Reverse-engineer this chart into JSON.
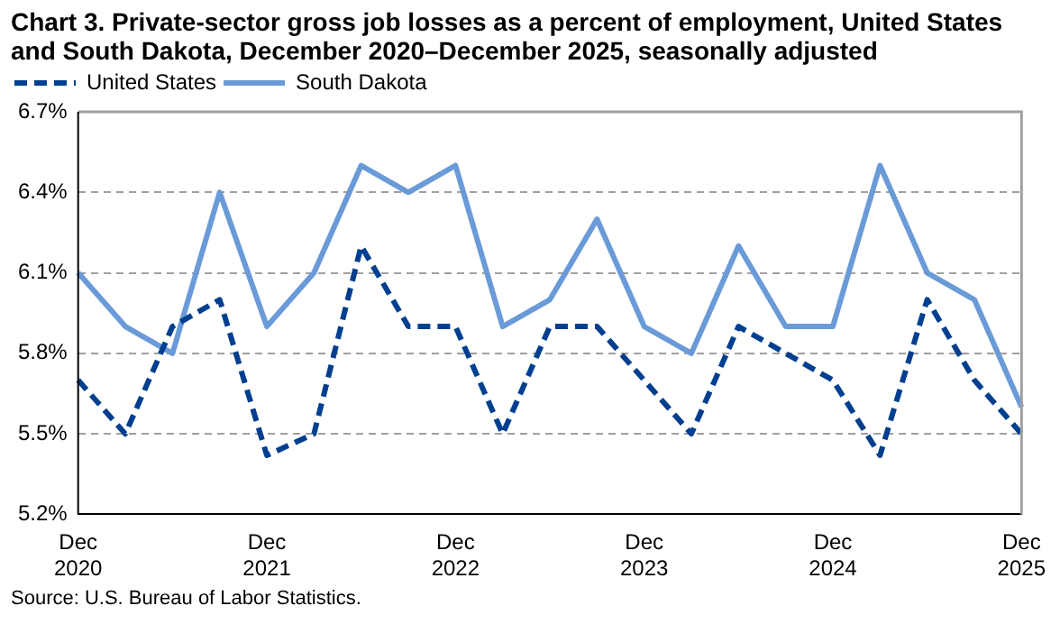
{
  "chart_data": {
    "type": "line",
    "title": "Chart 3. Private-sector gross job losses as a percent of employment, United States and South Dakota, December 2020–December 2025, seasonally adjusted",
    "categories": [
      "Dec 2020",
      null,
      null,
      null,
      "Dec 2021",
      null,
      null,
      null,
      "Dec 2022",
      null,
      null,
      null,
      "Dec 2023",
      null,
      null,
      null,
      "Dec 2024",
      null,
      null,
      null,
      "Dec 2025"
    ],
    "series": [
      {
        "name": "United States",
        "color": "#003f8f",
        "line_style": "dashed",
        "values": [
          5.7,
          5.5,
          5.9,
          6.0,
          5.42,
          5.5,
          6.2,
          5.9,
          5.9,
          5.5,
          5.9,
          5.9,
          5.7,
          5.5,
          5.9,
          5.8,
          5.7,
          5.42,
          6.0,
          5.7,
          5.5
        ]
      },
      {
        "name": "South Dakota",
        "color": "#6a9bd8",
        "line_style": "solid",
        "values": [
          6.1,
          5.9,
          5.8,
          6.4,
          5.9,
          6.1,
          6.5,
          6.4,
          6.5,
          5.9,
          6.0,
          6.3,
          5.9,
          5.8,
          6.2,
          5.9,
          5.9,
          6.5,
          6.1,
          6.0,
          5.6
        ]
      }
    ],
    "ylim": [
      5.2,
      6.7
    ],
    "yticks": [
      {
        "value": 5.2,
        "label": "5.2%"
      },
      {
        "value": 5.5,
        "label": "5.5%"
      },
      {
        "value": 5.8,
        "label": "5.8%"
      },
      {
        "value": 6.1,
        "label": "6.1%"
      },
      {
        "value": 6.4,
        "label": "6.4%"
      },
      {
        "value": 6.7,
        "label": "6.7%"
      }
    ],
    "grid": "y",
    "legend": "top left",
    "marker": "none",
    "annotations": [
      "Source: U.S. Bureau of Labor Statistics."
    ]
  }
}
